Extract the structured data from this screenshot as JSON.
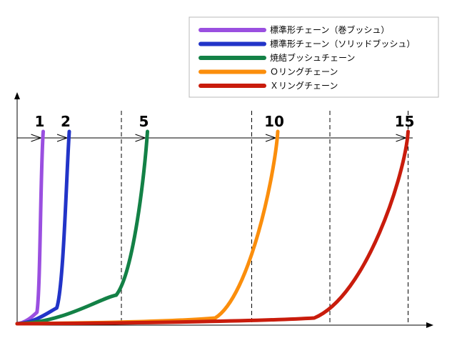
{
  "chart_data": {
    "type": "line",
    "title": "",
    "xlabel": "",
    "ylabel": "",
    "grid": false,
    "legend_position": "top-right",
    "x_guides": [
      4,
      9,
      12,
      15
    ],
    "series": [
      {
        "name": "標準形チェーン（巻ブッシュ）",
        "label": "1",
        "life": 1,
        "color": "#9a4fe0"
      },
      {
        "name": "標準形チェーン（ソリッドブッシュ）",
        "label": "2",
        "life": 2,
        "color": "#2234c8"
      },
      {
        "name": "焼結ブッシュチェーン",
        "label": "5",
        "life": 5,
        "color": "#138146"
      },
      {
        "name": "Ｏリングチェーン",
        "label": "10",
        "life": 10,
        "color": "#fb8e0c"
      },
      {
        "name": "Ｘリングチェーン",
        "label": "15",
        "life": 15,
        "color": "#c91c0c"
      }
    ]
  }
}
